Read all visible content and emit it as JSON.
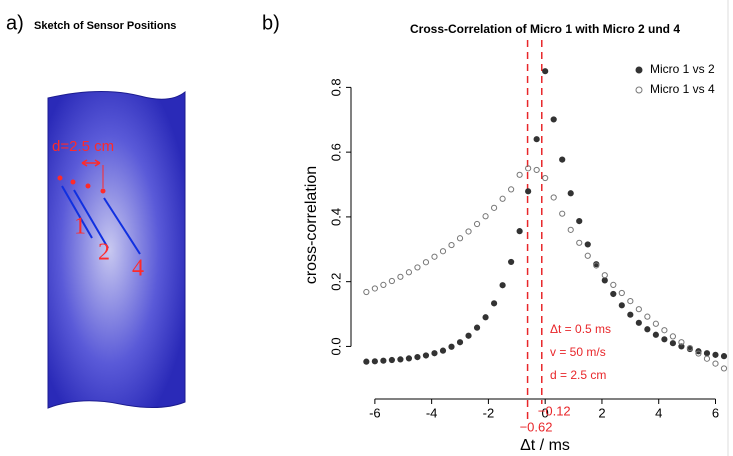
{
  "sketch": {
    "panel_label": "a)",
    "title": "Sketch of Sensor Positions",
    "distance_label": "d=2.5 cm",
    "sensors": [
      "1",
      "2",
      "4"
    ]
  },
  "chart_data": {
    "type": "scatter",
    "panel_label": "b)",
    "title": "Cross-Correlation of Micro 1 with Micro 2 und 4",
    "xlabel": "Δt / ms",
    "ylabel": "cross-correlation",
    "x": [
      -6.3,
      -6.0,
      -5.7,
      -5.4,
      -5.1,
      -4.8,
      -4.5,
      -4.2,
      -3.9,
      -3.6,
      -3.3,
      -3.0,
      -2.7,
      -2.4,
      -2.1,
      -1.8,
      -1.5,
      -1.2,
      -0.9,
      -0.6,
      -0.3,
      0,
      0.3,
      0.6,
      0.9,
      1.2,
      1.5,
      1.8,
      2.1,
      2.4,
      2.7,
      3.0,
      3.3,
      3.6,
      3.9,
      4.2,
      4.5,
      4.8,
      5.1,
      5.4,
      5.7,
      6.0,
      6.3
    ],
    "series": [
      {
        "name": "Micro 1 vs 2",
        "color": "#333333",
        "marker": "filled",
        "values": [
          -0.047,
          -0.046,
          -0.044,
          -0.042,
          -0.04,
          -0.037,
          -0.033,
          -0.028,
          -0.021,
          -0.013,
          -0.001,
          0.013,
          0.033,
          0.058,
          0.09,
          0.133,
          0.189,
          0.261,
          0.356,
          0.479,
          0.64,
          0.85,
          0.701,
          0.577,
          0.473,
          0.387,
          0.315,
          0.254,
          0.204,
          0.162,
          0.127,
          0.098,
          0.073,
          0.053,
          0.036,
          0.022,
          0.01,
          0.0,
          -0.008,
          -0.015,
          -0.021,
          -0.026,
          -0.03
        ]
      },
      {
        "name": "Micro 1 vs 4",
        "color": "#777777",
        "marker": "open",
        "values": [
          0.168,
          0.179,
          0.19,
          0.202,
          0.215,
          0.229,
          0.244,
          0.26,
          0.277,
          0.294,
          0.313,
          0.334,
          0.355,
          0.378,
          0.402,
          0.428,
          0.456,
          0.485,
          0.53,
          0.55,
          0.545,
          0.52,
          0.46,
          0.41,
          0.36,
          0.32,
          0.28,
          0.25,
          0.22,
          0.19,
          0.165,
          0.14,
          0.115,
          0.092,
          0.07,
          0.05,
          0.031,
          0.013,
          -0.005,
          -0.022,
          -0.038,
          -0.053,
          -0.068
        ]
      }
    ],
    "xlim": [
      -6.7,
      6.3
    ],
    "xticks": [
      -6,
      -4,
      -2,
      0,
      2,
      4,
      6
    ],
    "ylim": [
      -0.15,
      0.9
    ],
    "yticks": [
      {
        "value": 0,
        "label": "0.0"
      },
      0.2,
      0.4,
      0.6,
      0.8
    ],
    "vlines": [
      {
        "value": -0.62,
        "label": "−0.62"
      },
      {
        "value": -0.12,
        "label": "−0.12"
      }
    ],
    "vline_color": "#e8262a",
    "annotations": [
      "Δt = 0.5 ms",
      "v  = 50 m/s",
      "d = 2.5 cm"
    ],
    "legend": "top-right"
  }
}
